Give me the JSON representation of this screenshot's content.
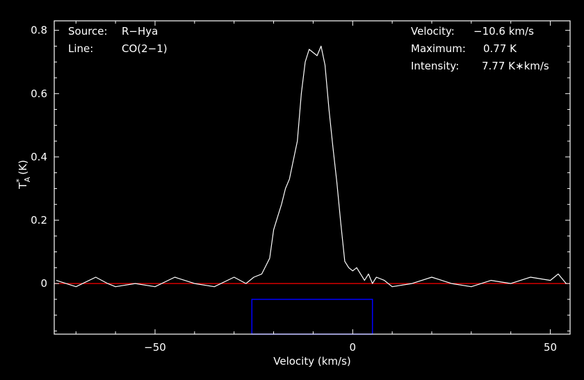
{
  "chart_data": {
    "type": "line",
    "title": "",
    "xlabel": "Velocity (km/s)",
    "ylabel": "T",
    "ylabel_sup": "*",
    "ylabel_sub": "A",
    "ylabel_unit": "(K)",
    "xlim": [
      -75.5,
      55.0
    ],
    "ylim": [
      -0.16,
      0.83
    ],
    "xticks": [
      -50,
      0,
      50
    ],
    "xtick_labels": [
      "−50",
      "0",
      "50"
    ],
    "yticks": [
      0,
      0.2,
      0.4,
      0.6,
      0.8
    ],
    "ytick_labels": [
      "0",
      "0.2",
      "0.4",
      "0.6",
      "0.8"
    ],
    "info_left": [
      {
        "key": "Source:",
        "value": "R−Hya"
      },
      {
        "key": "Line:",
        "value": "CO(2−1)"
      }
    ],
    "info_right": [
      {
        "key": "Velocity:",
        "value": "−10.6 km/s"
      },
      {
        "key": "Maximum:",
        "value": "0.77 K"
      },
      {
        "key": "Intensity:",
        "value": "7.77 K∗km/s"
      }
    ],
    "baseline": {
      "y": 0,
      "color": "#ff0000"
    },
    "integration_window": {
      "x": [
        -25.5,
        5.0
      ],
      "color": "#0000ff",
      "y_bottom": -0.16,
      "y_top": -0.05
    },
    "series": [
      {
        "color": "#ffffff",
        "x": [
          -75,
          -70,
          -65,
          -62,
          -60,
          -55,
          -50,
          -45,
          -40,
          -35,
          -30,
          -27,
          -25,
          -23,
          -21,
          -20,
          -19,
          -18,
          -17,
          -16,
          -15,
          -14,
          -13,
          -12,
          -11,
          -10,
          -9,
          -8,
          -7,
          -6,
          -5,
          -4,
          -3,
          -2,
          -1,
          0,
          1,
          2,
          3,
          4,
          5,
          6,
          8,
          10,
          15,
          20,
          25,
          30,
          35,
          40,
          45,
          50,
          52,
          54
        ],
        "y": [
          0.01,
          -0.01,
          0.02,
          0.0,
          -0.01,
          0.0,
          -0.01,
          0.02,
          0.0,
          -0.01,
          0.02,
          0.0,
          0.02,
          0.03,
          0.08,
          0.17,
          0.21,
          0.25,
          0.3,
          0.33,
          0.39,
          0.45,
          0.6,
          0.7,
          0.74,
          0.73,
          0.72,
          0.75,
          0.69,
          0.55,
          0.43,
          0.32,
          0.19,
          0.07,
          0.05,
          0.04,
          0.05,
          0.03,
          0.01,
          0.03,
          0.0,
          0.02,
          0.01,
          -0.01,
          0.0,
          0.02,
          0.0,
          -0.01,
          0.01,
          0.0,
          0.02,
          0.01,
          0.03,
          0.0
        ]
      }
    ]
  }
}
